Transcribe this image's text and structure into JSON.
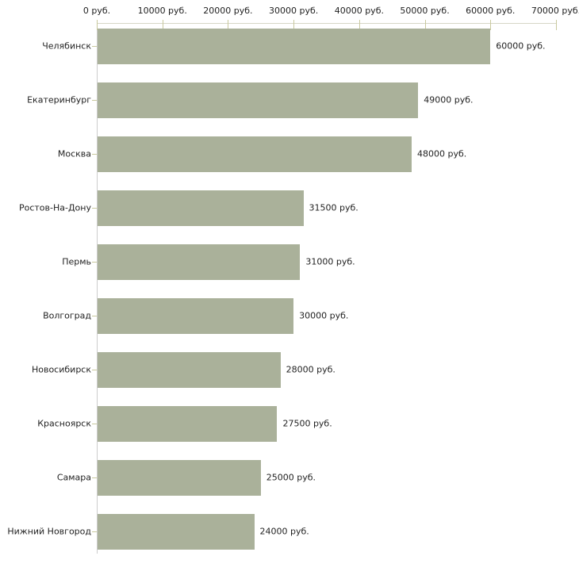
{
  "chart_data": {
    "type": "bar",
    "orientation": "horizontal",
    "title": "",
    "xlabel": "",
    "ylabel": "",
    "unit": "руб.",
    "xlim": [
      0,
      70000
    ],
    "grid": "off",
    "legend": "none",
    "categories": [
      "Челябинск",
      "Екатеринбург",
      "Москва",
      "Ростов-На-Дону",
      "Пермь",
      "Волгоград",
      "Новосибирск",
      "Красноярск",
      "Самара",
      "Нижний Новгород"
    ],
    "values": [
      60000,
      49000,
      48000,
      31500,
      31000,
      30000,
      28000,
      27500,
      25000,
      24000
    ],
    "value_labels": [
      "60000 руб.",
      "49000 руб.",
      "48000 руб.",
      "31500 руб.",
      "31000 руб.",
      "30000 руб.",
      "28000 руб.",
      "27500 руб.",
      "25000 руб.",
      "24000 руб."
    ],
    "x_tick_values": [
      0,
      10000,
      20000,
      30000,
      40000,
      50000,
      60000,
      70000
    ],
    "x_tick_labels": [
      "0 руб.",
      "10000 руб.",
      "20000 руб.",
      "30000 руб.",
      "40000 руб.",
      "50000 руб.",
      "60000 руб.",
      "70000 руб."
    ],
    "colors": {
      "bar": "#aab19a",
      "x_axis_line": "#d6d6c6",
      "tick": "#c9c99e",
      "y_axis_line": "#cccccc",
      "text": "#222222",
      "background": "#ffffff"
    }
  }
}
